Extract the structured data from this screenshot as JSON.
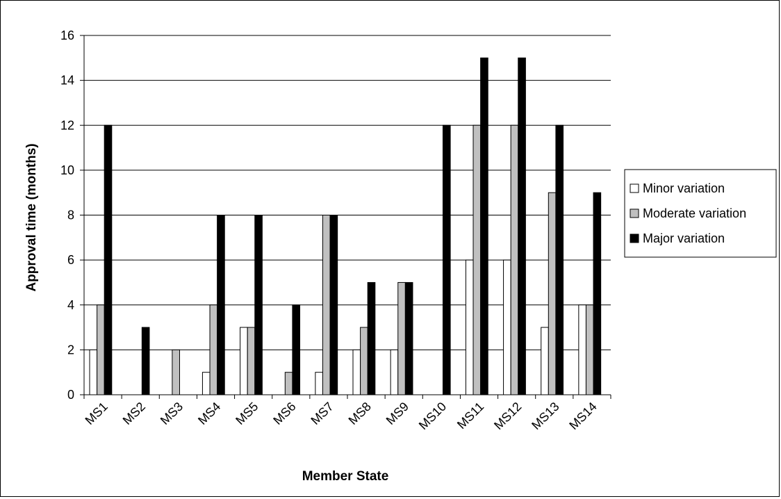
{
  "chart_data": {
    "type": "bar",
    "title": "",
    "xlabel": "Member State",
    "ylabel": "Approval time (months)",
    "ylim": [
      0,
      16
    ],
    "yticks": [
      0,
      2,
      4,
      6,
      8,
      10,
      12,
      14,
      16
    ],
    "grid": "horizontal",
    "legend_position": "right",
    "categories": [
      "MS1",
      "MS2",
      "MS3",
      "MS4",
      "MS5",
      "MS6",
      "MS7",
      "MS8",
      "MS9",
      "MS10",
      "MS11",
      "MS12",
      "MS13",
      "MS14"
    ],
    "series": [
      {
        "name": "Minor variation",
        "color": "#ffffff",
        "values": [
          2,
          0,
          0,
          1,
          3,
          0,
          1,
          2,
          2,
          0,
          6,
          6,
          3,
          4
        ]
      },
      {
        "name": "Moderate variation",
        "color": "#c0c0c0",
        "values": [
          4,
          0,
          2,
          4,
          3,
          1,
          8,
          3,
          5,
          0,
          12,
          12,
          9,
          4
        ]
      },
      {
        "name": "Major variation",
        "color": "#000000",
        "values": [
          12,
          3,
          0,
          8,
          8,
          4,
          8,
          5,
          5,
          12,
          15,
          15,
          12,
          9
        ]
      }
    ]
  }
}
